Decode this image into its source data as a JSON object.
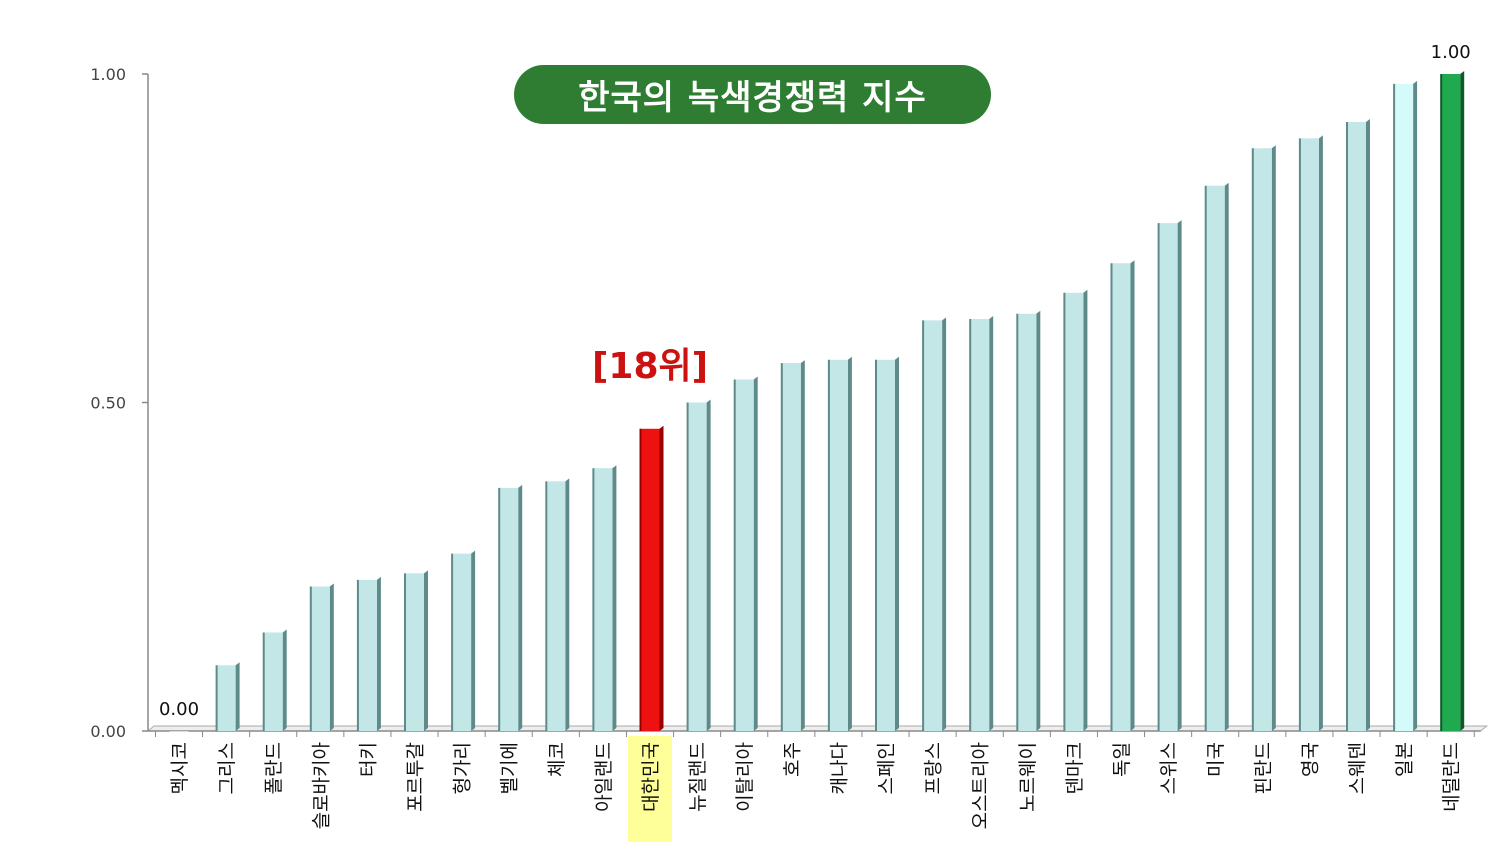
{
  "title": "한국의 녹색경쟁력 지수",
  "rank_label": "[18위]",
  "colors": {
    "default_bar": "#c3e7e7",
    "highlight_bar": "#ee1111",
    "top_bar": "#1faa50",
    "highlight_label_bg": "#ffff99",
    "title_bg": "#2e7d32"
  },
  "chart_data": {
    "type": "bar",
    "title": "한국의 녹색경쟁력 지수",
    "ylim": [
      0,
      1
    ],
    "yticks": [
      "0.00",
      "0.50",
      "1.00"
    ],
    "ytick_values": [
      0,
      0.5,
      1
    ],
    "grid": false,
    "categories": [
      "멕시코",
      "그리스",
      "폴란드",
      "슬로바키아",
      "터키",
      "포르투갈",
      "헝가리",
      "벨기에",
      "체코",
      "아일랜드",
      "대한민국",
      "뉴질랜드",
      "이탈리아",
      "호주",
      "캐나다",
      "스페인",
      "프랑스",
      "오스트리아",
      "노르웨이",
      "덴마크",
      "독일",
      "스위스",
      "미국",
      "핀란드",
      "영국",
      "스웨덴",
      "일본",
      "네덜란드"
    ],
    "values": [
      0.0,
      0.1,
      0.15,
      0.22,
      0.23,
      0.24,
      0.27,
      0.37,
      0.38,
      0.4,
      0.46,
      0.5,
      0.535,
      0.56,
      0.565,
      0.565,
      0.625,
      0.627,
      0.635,
      0.667,
      0.712,
      0.773,
      0.83,
      0.887,
      0.902,
      0.927,
      0.985,
      1.0
    ],
    "highlight_index": 10,
    "top_index": 27,
    "data_labels": [
      {
        "index": 0,
        "text": "0.00"
      },
      {
        "index": 27,
        "text": "1.00"
      }
    ]
  }
}
